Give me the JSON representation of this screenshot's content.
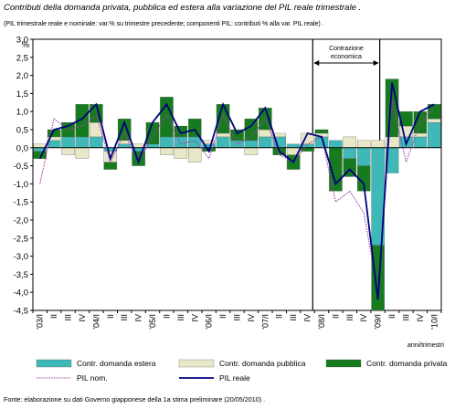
{
  "chart_data": {
    "type": "bar",
    "title": "Contributi della domanda privata, pubblica ed estera alla variazione del PIL reale trimestrale .",
    "subtitle": "(PIL trimestrale reale e nominale: var.% su trimestre precedente; componenti PIL: contributi % alla var. PIL reale) .",
    "ylabel": "%",
    "xlabel": "anni/trimestri",
    "ylim": [
      -4.5,
      3.0
    ],
    "yticks": [
      "3,0",
      "2,5",
      "2,0",
      "1,5",
      "1,0",
      "0,5",
      "0,0",
      "-0,5",
      "-1,0",
      "-1,5",
      "-2,0",
      "-2,5",
      "-3,0",
      "-3,5",
      "-4,0",
      "-4,5"
    ],
    "categories": [
      "'03/I",
      "II",
      "III",
      "IV",
      "'04/I",
      "II",
      "III",
      "IV",
      "'05/I",
      "II",
      "III",
      "IV",
      "'06/I",
      "II",
      "III",
      "IV",
      "'07/I",
      "II",
      "III",
      "IV",
      "'08/I",
      "II",
      "III",
      "IV",
      "'09/I",
      "II",
      "III",
      "IV",
      "'10/I"
    ],
    "annotation": "Contrazione economica",
    "series": [
      {
        "name": "Contr. domanda estera",
        "kind": "bar",
        "color": "#3fb8b8",
        "values": [
          -0.1,
          0.2,
          0.3,
          0.3,
          0.3,
          -0.1,
          0.1,
          -0.1,
          0.1,
          0.3,
          0.3,
          0.3,
          0.1,
          0.3,
          0.2,
          0.2,
          0.3,
          0.3,
          0.1,
          0.1,
          0.3,
          0.2,
          -0.3,
          -0.5,
          -2.7,
          -0.7,
          0.3,
          0.3,
          0.7
        ]
      },
      {
        "name": "Contr. domanda pubblica",
        "kind": "bar",
        "color": "#e8e8c8",
        "values": [
          0.1,
          0.1,
          -0.2,
          -0.3,
          0.4,
          -0.3,
          0.1,
          0.1,
          0.0,
          -0.2,
          -0.3,
          -0.4,
          0.1,
          0.1,
          0.0,
          -0.2,
          0.2,
          0.1,
          -0.2,
          0.3,
          0.1,
          0.0,
          0.3,
          0.2,
          0.2,
          0.3,
          0.3,
          0.1,
          0.1
        ]
      },
      {
        "name": "Contr. domanda privata",
        "kind": "bar",
        "color": "#167a1e",
        "values": [
          -0.2,
          0.2,
          0.4,
          0.9,
          0.5,
          -0.2,
          0.6,
          -0.4,
          0.6,
          1.1,
          0.3,
          0.5,
          -0.1,
          0.8,
          0.3,
          0.6,
          0.6,
          -0.2,
          -0.4,
          -0.1,
          0.1,
          -1.2,
          -0.5,
          -0.7,
          -1.8,
          1.6,
          0.4,
          0.6,
          0.4
        ]
      },
      {
        "name": "PIL nom.",
        "kind": "line",
        "color": "#a040a0",
        "values": [
          -1.0,
          0.8,
          0.5,
          0.6,
          0.9,
          -0.4,
          0.4,
          -0.4,
          0.3,
          0.9,
          0.1,
          0.2,
          -0.3,
          0.9,
          0.1,
          0.3,
          0.8,
          -0.2,
          -0.4,
          0.1,
          0.3,
          -1.5,
          -1.2,
          -1.8,
          -4.0,
          1.3,
          -0.4,
          0.7,
          1.1
        ]
      },
      {
        "name": "PIL reale",
        "kind": "line",
        "color": "#000080",
        "values": [
          -0.3,
          0.5,
          0.6,
          0.8,
          1.2,
          -0.3,
          0.7,
          -0.4,
          0.7,
          1.2,
          0.4,
          0.5,
          -0.1,
          1.2,
          0.4,
          0.6,
          1.1,
          -0.1,
          -0.4,
          0.4,
          0.3,
          -1.0,
          -0.6,
          -1.0,
          -4.2,
          1.8,
          0.1,
          1.0,
          1.2
        ]
      }
    ],
    "legend_position": "bottom",
    "grid": false
  },
  "source": "Fonte: elaborazione su dati Governo giapponese della 1a stima preliminare (20/05/2010) ."
}
